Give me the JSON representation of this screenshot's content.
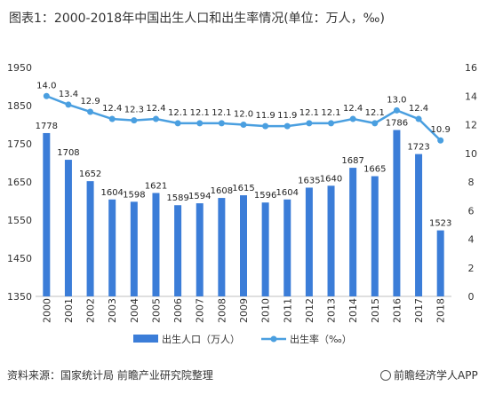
{
  "title": "图表1：2000-2018年中国出生人口和出生率情况(单位：万人，‰)",
  "source": "资料来源：国家统计局 前瞻产业研究院整理",
  "brand": "前瞻经济学人APP",
  "chart_data": {
    "type": "bar",
    "categories": [
      "2000",
      "2001",
      "2002",
      "2003",
      "2004",
      "2005",
      "2006",
      "2007",
      "2008",
      "2009",
      "2010",
      "2011",
      "2012",
      "2013",
      "2014",
      "2015",
      "2016",
      "2017",
      "2018"
    ],
    "series": [
      {
        "name": "出生人口（万人）",
        "type": "bar",
        "axis": "left",
        "color": "#3B7DD8",
        "values": [
          1778,
          1708,
          1652,
          1604,
          1598,
          1621,
          1589,
          1594,
          1608,
          1615,
          1596,
          1604,
          1635,
          1640,
          1687,
          1665,
          1786,
          1723,
          1523
        ],
        "labels": [
          "1778",
          "1708",
          "1652",
          "1604",
          "1598",
          "1621",
          "1589",
          "1594",
          "1608",
          "1615",
          "1596",
          "1604",
          "1635",
          "1640",
          "1687",
          "1665",
          "1786",
          "1723",
          "1523"
        ]
      },
      {
        "name": "出生率（‰）",
        "type": "line",
        "axis": "right",
        "color": "#4A9FE0",
        "values": [
          14.0,
          13.4,
          12.9,
          12.4,
          12.3,
          12.4,
          12.1,
          12.1,
          12.1,
          12.0,
          11.9,
          11.9,
          12.1,
          12.1,
          12.4,
          12.1,
          13.0,
          12.4,
          10.9
        ],
        "labels": [
          "14.0",
          "13.4",
          "12.9",
          "12.4",
          "12.3",
          "12.4",
          "12.1",
          "12.1",
          "12.1",
          "12.0",
          "11.9",
          "11.9",
          "12.1",
          "12.1",
          "12.4",
          "12.1",
          "13.0",
          "12.4",
          "10.9"
        ]
      }
    ],
    "y_left": {
      "ylim": [
        1350,
        1950
      ],
      "ticks": [
        "1350",
        "1450",
        "1550",
        "1650",
        "1750",
        "1850",
        "1950"
      ]
    },
    "y_right": {
      "ylim": [
        0,
        16
      ],
      "ticks": [
        "0",
        "2",
        "4",
        "6",
        "8",
        "10",
        "12",
        "14",
        "16"
      ]
    },
    "grid": false,
    "legend": "bottom"
  }
}
